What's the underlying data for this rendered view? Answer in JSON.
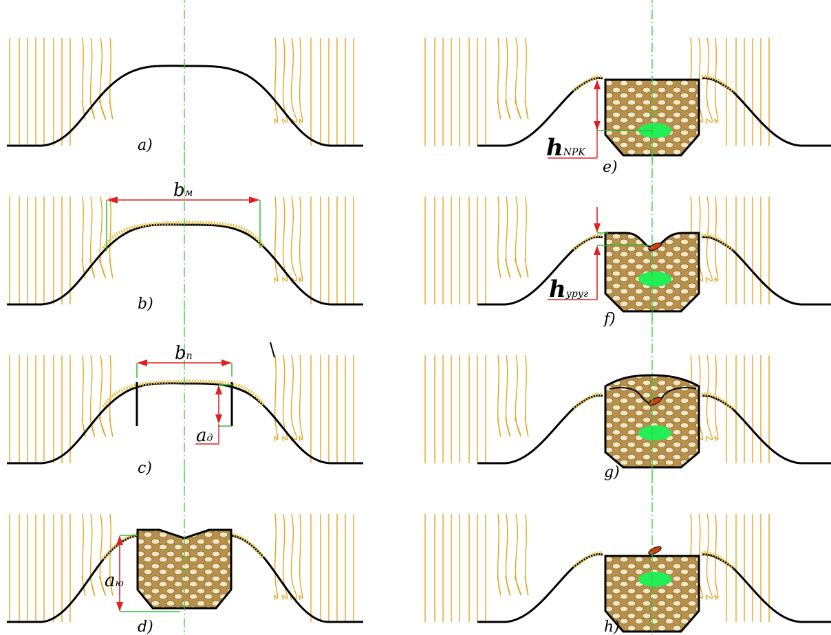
{
  "panels": [
    {
      "id": "a",
      "caption": "a)"
    },
    {
      "id": "b",
      "caption": "b)",
      "dim_main": "b",
      "dim_sub": "м"
    },
    {
      "id": "c",
      "caption": "c)",
      "dim_main": "b",
      "dim_sub": "n",
      "dim2_main": "a",
      "dim2_sub": "д"
    },
    {
      "id": "d",
      "caption": "d)",
      "dim_main": "a",
      "dim_sub": "ю"
    },
    {
      "id": "e",
      "caption": "e)",
      "dim_main": "h",
      "dim_sub": "NPK"
    },
    {
      "id": "f",
      "caption": "f)",
      "dim_main": "h",
      "dim_sub": "уруг"
    },
    {
      "id": "g",
      "caption": "g)"
    },
    {
      "id": "h",
      "caption": "h)"
    }
  ],
  "colors": {
    "ground": "#000000",
    "roots": "#e0a820",
    "centerline": "#33cc33",
    "dimension": "#dd2222",
    "extension": "#33bb33",
    "mulch": "#e8c040",
    "fill": "#b8904a",
    "seed": "#22ee55",
    "grain": "#d04010"
  }
}
